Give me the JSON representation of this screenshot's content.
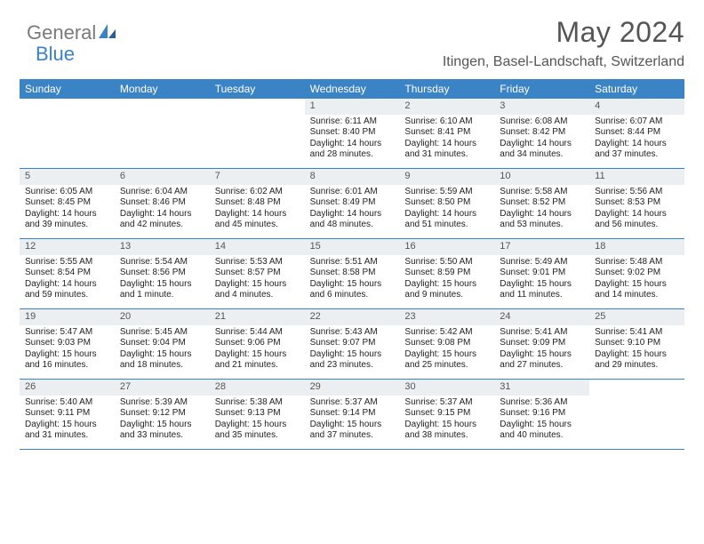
{
  "logo": {
    "part1": "General",
    "part2": "Blue"
  },
  "title": "May 2024",
  "location": "Itingen, Basel-Landschaft, Switzerland",
  "colors": {
    "header_bg": "#3a83c4",
    "header_text": "#ffffff",
    "daynum_bg": "#eceff1",
    "daynum_text": "#555555",
    "border": "#3a83c4",
    "logo_gray": "#7a7a7a",
    "logo_blue": "#3a83c4"
  },
  "day_names": [
    "Sunday",
    "Monday",
    "Tuesday",
    "Wednesday",
    "Thursday",
    "Friday",
    "Saturday"
  ],
  "weeks": [
    [
      {
        "day": "",
        "sunrise": "",
        "sunset": "",
        "daylight1": "",
        "daylight2": ""
      },
      {
        "day": "",
        "sunrise": "",
        "sunset": "",
        "daylight1": "",
        "daylight2": ""
      },
      {
        "day": "",
        "sunrise": "",
        "sunset": "",
        "daylight1": "",
        "daylight2": ""
      },
      {
        "day": "1",
        "sunrise": "Sunrise: 6:11 AM",
        "sunset": "Sunset: 8:40 PM",
        "daylight1": "Daylight: 14 hours",
        "daylight2": "and 28 minutes."
      },
      {
        "day": "2",
        "sunrise": "Sunrise: 6:10 AM",
        "sunset": "Sunset: 8:41 PM",
        "daylight1": "Daylight: 14 hours",
        "daylight2": "and 31 minutes."
      },
      {
        "day": "3",
        "sunrise": "Sunrise: 6:08 AM",
        "sunset": "Sunset: 8:42 PM",
        "daylight1": "Daylight: 14 hours",
        "daylight2": "and 34 minutes."
      },
      {
        "day": "4",
        "sunrise": "Sunrise: 6:07 AM",
        "sunset": "Sunset: 8:44 PM",
        "daylight1": "Daylight: 14 hours",
        "daylight2": "and 37 minutes."
      }
    ],
    [
      {
        "day": "5",
        "sunrise": "Sunrise: 6:05 AM",
        "sunset": "Sunset: 8:45 PM",
        "daylight1": "Daylight: 14 hours",
        "daylight2": "and 39 minutes."
      },
      {
        "day": "6",
        "sunrise": "Sunrise: 6:04 AM",
        "sunset": "Sunset: 8:46 PM",
        "daylight1": "Daylight: 14 hours",
        "daylight2": "and 42 minutes."
      },
      {
        "day": "7",
        "sunrise": "Sunrise: 6:02 AM",
        "sunset": "Sunset: 8:48 PM",
        "daylight1": "Daylight: 14 hours",
        "daylight2": "and 45 minutes."
      },
      {
        "day": "8",
        "sunrise": "Sunrise: 6:01 AM",
        "sunset": "Sunset: 8:49 PM",
        "daylight1": "Daylight: 14 hours",
        "daylight2": "and 48 minutes."
      },
      {
        "day": "9",
        "sunrise": "Sunrise: 5:59 AM",
        "sunset": "Sunset: 8:50 PM",
        "daylight1": "Daylight: 14 hours",
        "daylight2": "and 51 minutes."
      },
      {
        "day": "10",
        "sunrise": "Sunrise: 5:58 AM",
        "sunset": "Sunset: 8:52 PM",
        "daylight1": "Daylight: 14 hours",
        "daylight2": "and 53 minutes."
      },
      {
        "day": "11",
        "sunrise": "Sunrise: 5:56 AM",
        "sunset": "Sunset: 8:53 PM",
        "daylight1": "Daylight: 14 hours",
        "daylight2": "and 56 minutes."
      }
    ],
    [
      {
        "day": "12",
        "sunrise": "Sunrise: 5:55 AM",
        "sunset": "Sunset: 8:54 PM",
        "daylight1": "Daylight: 14 hours",
        "daylight2": "and 59 minutes."
      },
      {
        "day": "13",
        "sunrise": "Sunrise: 5:54 AM",
        "sunset": "Sunset: 8:56 PM",
        "daylight1": "Daylight: 15 hours",
        "daylight2": "and 1 minute."
      },
      {
        "day": "14",
        "sunrise": "Sunrise: 5:53 AM",
        "sunset": "Sunset: 8:57 PM",
        "daylight1": "Daylight: 15 hours",
        "daylight2": "and 4 minutes."
      },
      {
        "day": "15",
        "sunrise": "Sunrise: 5:51 AM",
        "sunset": "Sunset: 8:58 PM",
        "daylight1": "Daylight: 15 hours",
        "daylight2": "and 6 minutes."
      },
      {
        "day": "16",
        "sunrise": "Sunrise: 5:50 AM",
        "sunset": "Sunset: 8:59 PM",
        "daylight1": "Daylight: 15 hours",
        "daylight2": "and 9 minutes."
      },
      {
        "day": "17",
        "sunrise": "Sunrise: 5:49 AM",
        "sunset": "Sunset: 9:01 PM",
        "daylight1": "Daylight: 15 hours",
        "daylight2": "and 11 minutes."
      },
      {
        "day": "18",
        "sunrise": "Sunrise: 5:48 AM",
        "sunset": "Sunset: 9:02 PM",
        "daylight1": "Daylight: 15 hours",
        "daylight2": "and 14 minutes."
      }
    ],
    [
      {
        "day": "19",
        "sunrise": "Sunrise: 5:47 AM",
        "sunset": "Sunset: 9:03 PM",
        "daylight1": "Daylight: 15 hours",
        "daylight2": "and 16 minutes."
      },
      {
        "day": "20",
        "sunrise": "Sunrise: 5:45 AM",
        "sunset": "Sunset: 9:04 PM",
        "daylight1": "Daylight: 15 hours",
        "daylight2": "and 18 minutes."
      },
      {
        "day": "21",
        "sunrise": "Sunrise: 5:44 AM",
        "sunset": "Sunset: 9:06 PM",
        "daylight1": "Daylight: 15 hours",
        "daylight2": "and 21 minutes."
      },
      {
        "day": "22",
        "sunrise": "Sunrise: 5:43 AM",
        "sunset": "Sunset: 9:07 PM",
        "daylight1": "Daylight: 15 hours",
        "daylight2": "and 23 minutes."
      },
      {
        "day": "23",
        "sunrise": "Sunrise: 5:42 AM",
        "sunset": "Sunset: 9:08 PM",
        "daylight1": "Daylight: 15 hours",
        "daylight2": "and 25 minutes."
      },
      {
        "day": "24",
        "sunrise": "Sunrise: 5:41 AM",
        "sunset": "Sunset: 9:09 PM",
        "daylight1": "Daylight: 15 hours",
        "daylight2": "and 27 minutes."
      },
      {
        "day": "25",
        "sunrise": "Sunrise: 5:41 AM",
        "sunset": "Sunset: 9:10 PM",
        "daylight1": "Daylight: 15 hours",
        "daylight2": "and 29 minutes."
      }
    ],
    [
      {
        "day": "26",
        "sunrise": "Sunrise: 5:40 AM",
        "sunset": "Sunset: 9:11 PM",
        "daylight1": "Daylight: 15 hours",
        "daylight2": "and 31 minutes."
      },
      {
        "day": "27",
        "sunrise": "Sunrise: 5:39 AM",
        "sunset": "Sunset: 9:12 PM",
        "daylight1": "Daylight: 15 hours",
        "daylight2": "and 33 minutes."
      },
      {
        "day": "28",
        "sunrise": "Sunrise: 5:38 AM",
        "sunset": "Sunset: 9:13 PM",
        "daylight1": "Daylight: 15 hours",
        "daylight2": "and 35 minutes."
      },
      {
        "day": "29",
        "sunrise": "Sunrise: 5:37 AM",
        "sunset": "Sunset: 9:14 PM",
        "daylight1": "Daylight: 15 hours",
        "daylight2": "and 37 minutes."
      },
      {
        "day": "30",
        "sunrise": "Sunrise: 5:37 AM",
        "sunset": "Sunset: 9:15 PM",
        "daylight1": "Daylight: 15 hours",
        "daylight2": "and 38 minutes."
      },
      {
        "day": "31",
        "sunrise": "Sunrise: 5:36 AM",
        "sunset": "Sunset: 9:16 PM",
        "daylight1": "Daylight: 15 hours",
        "daylight2": "and 40 minutes."
      },
      {
        "day": "",
        "sunrise": "",
        "sunset": "",
        "daylight1": "",
        "daylight2": ""
      }
    ]
  ]
}
